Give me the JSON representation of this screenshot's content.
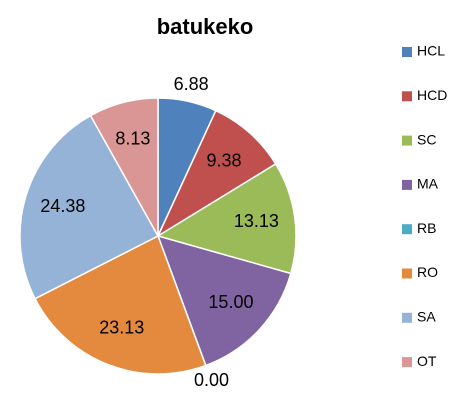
{
  "chart_data": {
    "type": "pie",
    "title": "batukeko",
    "categories": [
      "HCL",
      "HCD",
      "SC",
      "MA",
      "RB",
      "RO",
      "SA",
      "OT"
    ],
    "values": [
      6.88,
      9.38,
      13.13,
      15.0,
      0.0,
      23.13,
      24.38,
      8.13
    ],
    "value_labels": [
      "6.88",
      "9.38",
      "13.13",
      "15.00",
      "0.00",
      "23.13",
      "24.38",
      "8.13"
    ],
    "colors": [
      "#4f81bd",
      "#c0504d",
      "#9bbb59",
      "#8064a2",
      "#4bacc6",
      "#e38a3e",
      "#95b3d7",
      "#d99694"
    ],
    "legend": "right"
  }
}
